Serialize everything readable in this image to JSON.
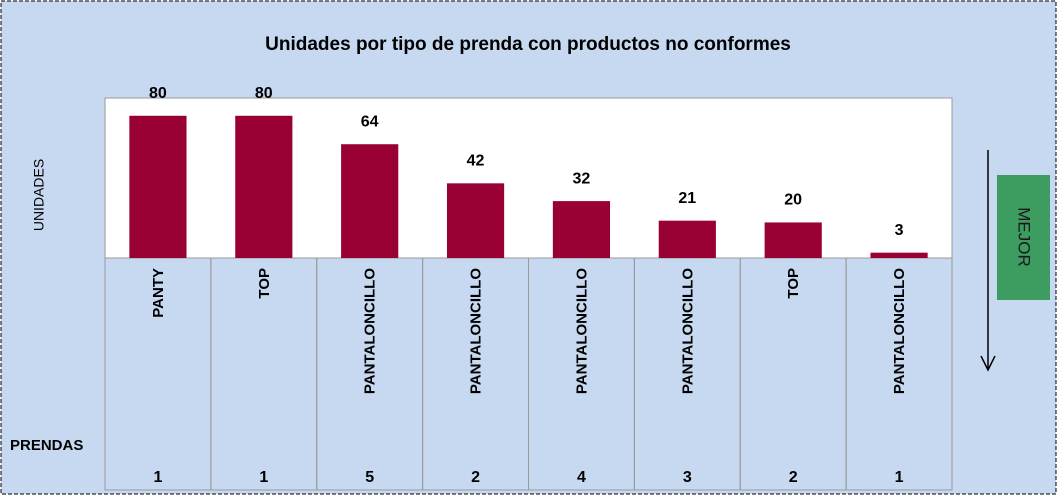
{
  "chart_data": {
    "type": "bar",
    "title": "Unidades por tipo de prenda con productos no conformes",
    "ylabel": "UNIDADES",
    "xlabel": "PRENDAS",
    "side_label": "MEJOR",
    "categories": [
      "PANTY",
      "TOP",
      "PANTALONCILLO",
      "PANTALONCILLO",
      "PANTALONCILLO",
      "PANTALONCILLO",
      "TOP",
      "PANTALONCILLO"
    ],
    "values": [
      80,
      80,
      64,
      42,
      32,
      21,
      20,
      3
    ],
    "prendas": [
      1,
      1,
      5,
      2,
      4,
      3,
      2,
      1
    ],
    "color": "#990033",
    "ylim": [
      0,
      90
    ]
  }
}
